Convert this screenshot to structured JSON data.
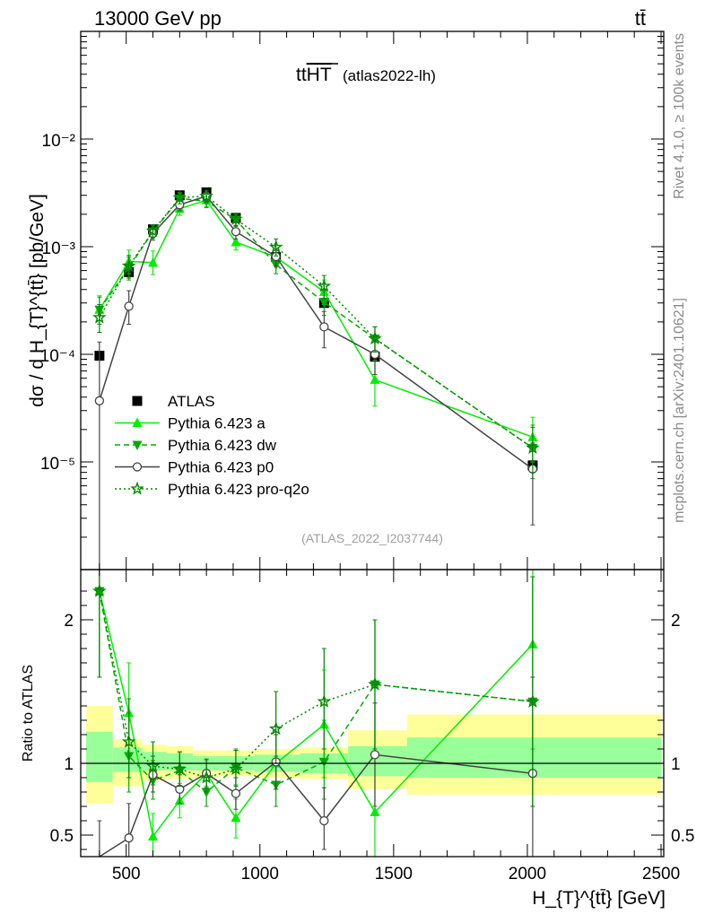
{
  "header": {
    "left_label": "13000 GeV pp",
    "right_label": "tt̄"
  },
  "plot_title": {
    "main": "tt̄HT",
    "main_prefix": "tt",
    "main_overlined": "HT",
    "sub": "(atlas2022-lh)"
  },
  "side_labels": {
    "rivet": "Rivet 4.1.0, ≥ 100k events",
    "mcplots": "mcplots.cern.ch [arXiv:2401.10621]"
  },
  "watermark": "(ATLAS_2022_I2037744)",
  "colors": {
    "data": "#000000",
    "pythia_a": "#00ee00",
    "pythia_dw": "#00aa00",
    "pythia_p0": "#444444",
    "pythia_proq2o": "#008800",
    "band_outer": "#ffff99",
    "band_inner": "#99ff99"
  },
  "chart_data": [
    {
      "type": "scatter",
      "panel": "main",
      "title": "tt̄HT (atlas2022-lh)",
      "ylabel": "dσ / d H_{T}^{tt̄} [pb/GeV]",
      "yscale": "log",
      "ylim": [
        1e-06,
        0.1
      ],
      "xlim": [
        330,
        2510
      ],
      "yticks": [
        {
          "value": 0.01,
          "label": "10⁻²"
        },
        {
          "value": 0.001,
          "label": "10⁻³"
        },
        {
          "value": 0.0001,
          "label": "10⁻⁴"
        },
        {
          "value": 1e-05,
          "label": "10⁻⁵"
        }
      ],
      "x": [
        400,
        510,
        600,
        700,
        800,
        910,
        1060,
        1240,
        1430,
        2020
      ],
      "series": [
        {
          "name": "ATLAS",
          "key": "data",
          "style": "square",
          "values": [
            9.7e-05,
            0.00058,
            0.00145,
            0.003,
            0.0032,
            0.00185,
            0.0008,
            0.0003,
            9.5e-05,
            9.3e-06
          ]
        },
        {
          "name": "Pythia 6.423 a",
          "key": "pythia_a",
          "style": "triangle-up",
          "dash": "",
          "values": [
            0.00026,
            0.00073,
            0.00071,
            0.00225,
            0.0027,
            0.0011,
            0.0008,
            0.00038,
            5.8e-05,
            1.7e-05
          ],
          "err_lo": [
            0.00019,
            0.00056,
            0.00055,
            0.00195,
            0.00235,
            0.00093,
            0.00066,
            0.00029,
            3.3e-05,
            1e-05
          ],
          "err_hi": [
            0.00035,
            0.00093,
            0.00091,
            0.0026,
            0.00305,
            0.0013,
            0.00096,
            0.00049,
            8.8e-05,
            2.6e-05
          ]
        },
        {
          "name": "Pythia 6.423 dw",
          "key": "pythia_dw",
          "style": "triangle-down",
          "dash": "6,4",
          "values": [
            0.00026,
            0.00064,
            0.00138,
            0.0028,
            0.00265,
            0.00178,
            0.00068,
            0.000305,
            0.00014,
            1.35e-05
          ],
          "err_lo": [
            0.00019,
            0.00049,
            0.0012,
            0.00245,
            0.0023,
            0.00155,
            0.00056,
            0.00023,
            0.000105,
            7e-06
          ],
          "err_hi": [
            0.00034,
            0.0008,
            0.00158,
            0.00315,
            0.003,
            0.002,
            0.00082,
            0.00039,
            0.00018,
            2.2e-05
          ]
        },
        {
          "name": "Pythia 6.423 p0",
          "key": "pythia_p0",
          "style": "circle",
          "dash": "",
          "values": [
            3.7e-05,
            0.00028,
            0.00133,
            0.00245,
            0.00295,
            0.00138,
            0.00081,
            0.00018,
            0.0001,
            8.6e-06
          ],
          "err_lo": [
            3e-07,
            0.00019,
            0.00115,
            0.00215,
            0.0026,
            0.00118,
            0.00066,
            0.000115,
            6.5e-05,
            2.6e-06
          ],
          "err_hi": [
            0.00013,
            0.00039,
            0.00152,
            0.00275,
            0.0033,
            0.00158,
            0.00096,
            0.00025,
            0.000135,
            1.5e-05
          ]
        },
        {
          "name": "Pythia 6.423 pro-q2o",
          "key": "pythia_proq2o",
          "style": "star",
          "dash": "2,3",
          "values": [
            0.00022,
            0.00066,
            0.0014,
            0.00285,
            0.00295,
            0.0018,
            0.00099,
            0.00043,
            0.00014,
            1.35e-05
          ],
          "err_lo": [
            0.00016,
            0.00051,
            0.00122,
            0.0025,
            0.0026,
            0.00155,
            0.00082,
            0.00033,
            0.000105,
            8e-06
          ],
          "err_hi": [
            0.00029,
            0.00083,
            0.0016,
            0.0032,
            0.0033,
            0.00205,
            0.00118,
            0.00054,
            0.00018,
            2.1e-05
          ]
        }
      ],
      "legend": {
        "placement": "lower-left",
        "entries": [
          "ATLAS",
          "Pythia 6.423 a",
          "Pythia 6.423 dw",
          "Pythia 6.423 p0",
          "Pythia 6.423 pro-q2o"
        ]
      }
    },
    {
      "type": "scatter",
      "panel": "ratio",
      "ylabel": "Ratio to ATLAS",
      "xlabel": "H_{T}^{tt̄} [GeV]",
      "ylim": [
        0.35,
        2.35
      ],
      "xlim": [
        330,
        2510
      ],
      "xticks": [
        500,
        1000,
        1500,
        2000,
        2500
      ],
      "yticks": [
        {
          "value": 0.5,
          "label": "0.5"
        },
        {
          "value": 1,
          "label": "1"
        },
        {
          "value": 2,
          "label": "2"
        }
      ],
      "x": [
        400,
        510,
        600,
        700,
        800,
        910,
        1060,
        1240,
        1430,
        2020
      ],
      "bands": {
        "edges": [
          350,
          450,
          560,
          650,
          750,
          850,
          980,
          1150,
          1330,
          1550,
          2500
        ],
        "outer_lo": [
          0.72,
          0.84,
          0.88,
          0.89,
          0.9,
          0.91,
          0.9,
          0.89,
          0.82,
          0.78
        ],
        "outer_hi": [
          1.4,
          1.17,
          1.13,
          1.12,
          1.09,
          1.09,
          1.1,
          1.11,
          1.23,
          1.34
        ],
        "inner_lo": [
          0.87,
          0.94,
          0.95,
          0.95,
          0.95,
          0.95,
          0.94,
          0.93,
          0.91,
          0.9
        ],
        "inner_hi": [
          1.22,
          1.11,
          1.08,
          1.07,
          1.05,
          1.05,
          1.06,
          1.07,
          1.12,
          1.18
        ]
      },
      "series": [
        {
          "name": "Pythia 6.423 a",
          "key": "pythia_a",
          "style": "triangle-up",
          "dash": "",
          "values": [
            2.2,
            1.35,
            0.49,
            0.74,
            0.93,
            0.62,
            1.0,
            1.27,
            0.66,
            1.83
          ],
          "err_lo": [
            1.6,
            1.0,
            0.33,
            0.62,
            0.84,
            0.48,
            0.82,
            0.9,
            0.3,
            1.1
          ],
          "err_hi": [
            2.5,
            1.7,
            0.65,
            0.86,
            1.02,
            0.75,
            1.2,
            1.65,
            1.0,
            2.6
          ]
        },
        {
          "name": "Pythia 6.423 dw",
          "key": "pythia_dw",
          "style": "triangle-down",
          "dash": "6,4",
          "values": [
            2.2,
            1.05,
            0.88,
            0.95,
            0.8,
            0.97,
            0.85,
            1.01,
            1.55,
            1.43
          ],
          "err_lo": [
            1.6,
            0.8,
            0.75,
            0.82,
            0.7,
            0.85,
            0.7,
            0.75,
            1.1,
            0.7
          ],
          "err_hi": [
            2.5,
            1.35,
            1.02,
            1.08,
            0.92,
            1.1,
            1.05,
            1.3,
            2.0,
            2.3
          ]
        },
        {
          "name": "Pythia 6.423 p0",
          "key": "pythia_p0",
          "style": "circle",
          "dash": "",
          "values": [
            0.33,
            0.48,
            0.92,
            0.82,
            0.93,
            0.79,
            1.01,
            0.6,
            1.06,
            0.93
          ],
          "err_lo": [
            0.0,
            0.3,
            0.8,
            0.72,
            0.83,
            0.68,
            0.82,
            0.4,
            0.7,
            0.3
          ],
          "err_hi": [
            0.6,
            0.72,
            1.05,
            0.92,
            1.03,
            0.9,
            1.2,
            0.83,
            1.42,
            1.6
          ]
        },
        {
          "name": "Pythia 6.423 pro-q2o",
          "key": "pythia_proq2o",
          "style": "star",
          "dash": "2,3",
          "values": [
            2.2,
            1.15,
            0.98,
            0.96,
            0.9,
            0.96,
            1.24,
            1.43,
            1.55,
            1.43
          ],
          "err_lo": [
            1.6,
            0.9,
            0.85,
            0.84,
            0.8,
            0.84,
            1.0,
            1.1,
            1.1,
            0.7
          ],
          "err_hi": [
            2.5,
            1.45,
            1.15,
            1.08,
            1.0,
            1.09,
            1.5,
            1.8,
            2.0,
            2.3
          ]
        }
      ]
    }
  ]
}
